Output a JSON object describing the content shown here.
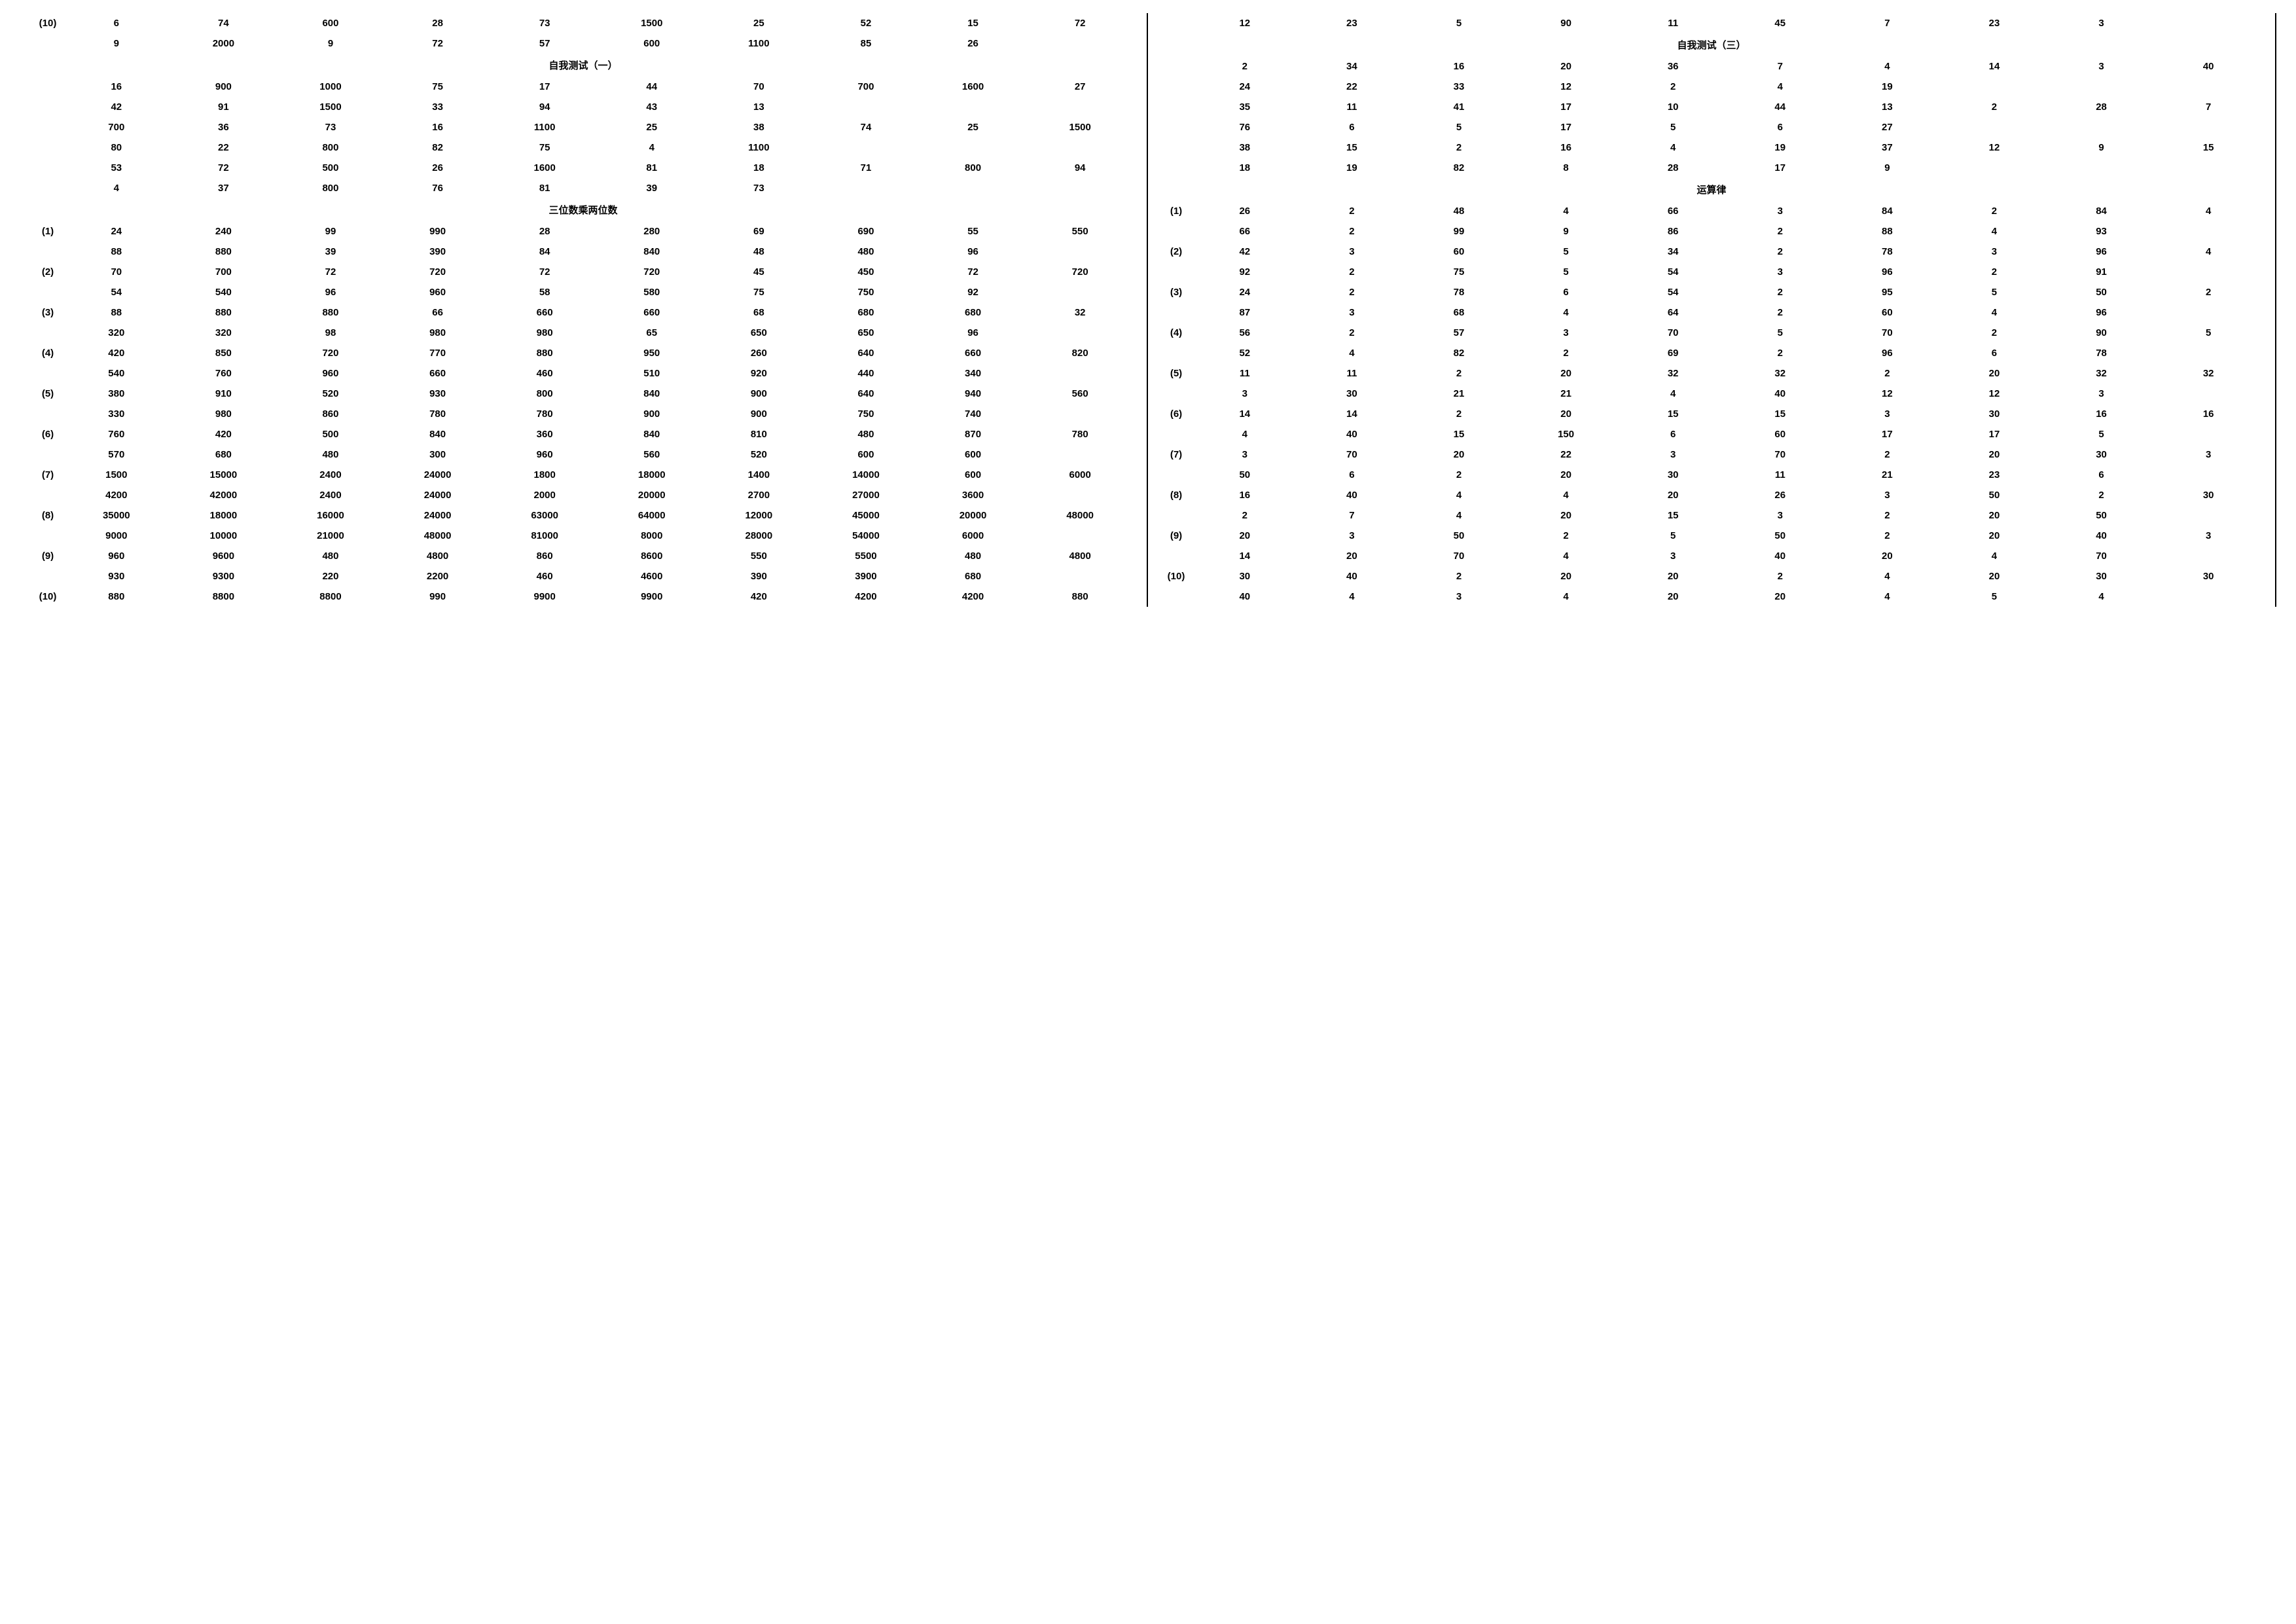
{
  "left": {
    "rows": [
      {
        "label": "(10)",
        "cells": [
          "6",
          "74",
          "600",
          "28",
          "73",
          "1500",
          "25",
          "52",
          "15",
          "72"
        ]
      },
      {
        "label": "",
        "cells": [
          "9",
          "2000",
          "9",
          "72",
          "57",
          "600",
          "1100",
          "85",
          "26",
          ""
        ]
      }
    ],
    "title1": "自我测试（一）",
    "rows1": [
      {
        "label": "",
        "cells": [
          "16",
          "900",
          "1000",
          "75",
          "17",
          "44",
          "70",
          "700",
          "1600",
          "27"
        ]
      },
      {
        "label": "",
        "cells": [
          "42",
          "91",
          "1500",
          "33",
          "94",
          "43",
          "13",
          "",
          "",
          ""
        ]
      },
      {
        "label": "",
        "cells": [
          "700",
          "36",
          "73",
          "16",
          "1100",
          "25",
          "38",
          "74",
          "25",
          "1500"
        ]
      },
      {
        "label": "",
        "cells": [
          "80",
          "22",
          "800",
          "82",
          "75",
          "4",
          "1100",
          "",
          "",
          ""
        ]
      },
      {
        "label": "",
        "cells": [
          "53",
          "72",
          "500",
          "26",
          "1600",
          "81",
          "18",
          "71",
          "800",
          "94"
        ]
      },
      {
        "label": "",
        "cells": [
          "4",
          "37",
          "800",
          "76",
          "81",
          "39",
          "73",
          "",
          "",
          ""
        ]
      }
    ],
    "title2": "三位数乘两位数",
    "rows2": [
      {
        "label": "(1)",
        "cells": [
          "24",
          "240",
          "99",
          "990",
          "28",
          "280",
          "69",
          "690",
          "55",
          "550"
        ]
      },
      {
        "label": "",
        "cells": [
          "88",
          "880",
          "39",
          "390",
          "84",
          "840",
          "48",
          "480",
          "96",
          ""
        ]
      },
      {
        "label": "(2)",
        "cells": [
          "70",
          "700",
          "72",
          "720",
          "72",
          "720",
          "45",
          "450",
          "72",
          "720"
        ]
      },
      {
        "label": "",
        "cells": [
          "54",
          "540",
          "96",
          "960",
          "58",
          "580",
          "75",
          "750",
          "92",
          ""
        ]
      },
      {
        "label": "(3)",
        "cells": [
          "88",
          "880",
          "880",
          "66",
          "660",
          "660",
          "68",
          "680",
          "680",
          "32"
        ]
      },
      {
        "label": "",
        "cells": [
          "320",
          "320",
          "98",
          "980",
          "980",
          "65",
          "650",
          "650",
          "96",
          ""
        ]
      },
      {
        "label": "(4)",
        "cells": [
          "420",
          "850",
          "720",
          "770",
          "880",
          "950",
          "260",
          "640",
          "660",
          "820"
        ]
      },
      {
        "label": "",
        "cells": [
          "540",
          "760",
          "960",
          "660",
          "460",
          "510",
          "920",
          "440",
          "340",
          ""
        ]
      },
      {
        "label": "(5)",
        "cells": [
          "380",
          "910",
          "520",
          "930",
          "800",
          "840",
          "900",
          "640",
          "940",
          "560"
        ]
      },
      {
        "label": "",
        "cells": [
          "330",
          "980",
          "860",
          "780",
          "780",
          "900",
          "900",
          "750",
          "740",
          ""
        ]
      },
      {
        "label": "(6)",
        "cells": [
          "760",
          "420",
          "500",
          "840",
          "360",
          "840",
          "810",
          "480",
          "870",
          "780"
        ]
      },
      {
        "label": "",
        "cells": [
          "570",
          "680",
          "480",
          "300",
          "960",
          "560",
          "520",
          "600",
          "600",
          ""
        ]
      },
      {
        "label": "(7)",
        "cells": [
          "1500",
          "15000",
          "2400",
          "24000",
          "1800",
          "18000",
          "1400",
          "14000",
          "600",
          "6000"
        ]
      },
      {
        "label": "",
        "cells": [
          "4200",
          "42000",
          "2400",
          "24000",
          "2000",
          "20000",
          "2700",
          "27000",
          "3600",
          ""
        ]
      },
      {
        "label": "(8)",
        "cells": [
          "35000",
          "18000",
          "16000",
          "24000",
          "63000",
          "64000",
          "12000",
          "45000",
          "20000",
          "48000"
        ]
      },
      {
        "label": "",
        "cells": [
          "9000",
          "10000",
          "21000",
          "48000",
          "81000",
          "8000",
          "28000",
          "54000",
          "6000",
          ""
        ]
      },
      {
        "label": "(9)",
        "cells": [
          "960",
          "9600",
          "480",
          "4800",
          "860",
          "8600",
          "550",
          "5500",
          "480",
          "4800"
        ]
      },
      {
        "label": "",
        "cells": [
          "930",
          "9300",
          "220",
          "2200",
          "460",
          "4600",
          "390",
          "3900",
          "680",
          ""
        ]
      },
      {
        "label": "(10)",
        "cells": [
          "880",
          "8800",
          "8800",
          "990",
          "9900",
          "9900",
          "420",
          "4200",
          "4200",
          "880"
        ]
      }
    ]
  },
  "right": {
    "rows": [
      {
        "label": "",
        "cells": [
          "12",
          "23",
          "5",
          "90",
          "11",
          "45",
          "7",
          "23",
          "3",
          ""
        ]
      }
    ],
    "title1": "自我测试（三）",
    "rows1": [
      {
        "label": "",
        "cells": [
          "2",
          "34",
          "16",
          "20",
          "36",
          "7",
          "4",
          "14",
          "3",
          "40"
        ]
      },
      {
        "label": "",
        "cells": [
          "24",
          "22",
          "33",
          "12",
          "2",
          "4",
          "19",
          "",
          "",
          ""
        ]
      },
      {
        "label": "",
        "cells": [
          "35",
          "11",
          "41",
          "17",
          "10",
          "44",
          "13",
          "2",
          "28",
          "7"
        ]
      },
      {
        "label": "",
        "cells": [
          "76",
          "6",
          "5",
          "17",
          "5",
          "6",
          "27",
          "",
          "",
          ""
        ]
      },
      {
        "label": "",
        "cells": [
          "38",
          "15",
          "2",
          "16",
          "4",
          "19",
          "37",
          "12",
          "9",
          "15"
        ]
      },
      {
        "label": "",
        "cells": [
          "18",
          "19",
          "82",
          "8",
          "28",
          "17",
          "9",
          "",
          "",
          ""
        ]
      }
    ],
    "title2": "运算律",
    "rows2": [
      {
        "label": "(1)",
        "cells": [
          "26",
          "2",
          "48",
          "4",
          "66",
          "3",
          "84",
          "2",
          "84",
          "4"
        ]
      },
      {
        "label": "",
        "cells": [
          "66",
          "2",
          "99",
          "9",
          "86",
          "2",
          "88",
          "4",
          "93",
          ""
        ]
      },
      {
        "label": "(2)",
        "cells": [
          "42",
          "3",
          "60",
          "5",
          "34",
          "2",
          "78",
          "3",
          "96",
          "4"
        ]
      },
      {
        "label": "",
        "cells": [
          "92",
          "2",
          "75",
          "5",
          "54",
          "3",
          "96",
          "2",
          "91",
          ""
        ]
      },
      {
        "label": "(3)",
        "cells": [
          "24",
          "2",
          "78",
          "6",
          "54",
          "2",
          "95",
          "5",
          "50",
          "2"
        ]
      },
      {
        "label": "",
        "cells": [
          "87",
          "3",
          "68",
          "4",
          "64",
          "2",
          "60",
          "4",
          "96",
          ""
        ]
      },
      {
        "label": "(4)",
        "cells": [
          "56",
          "2",
          "57",
          "3",
          "70",
          "5",
          "70",
          "2",
          "90",
          "5"
        ]
      },
      {
        "label": "",
        "cells": [
          "52",
          "4",
          "82",
          "2",
          "69",
          "2",
          "96",
          "6",
          "78",
          ""
        ]
      },
      {
        "label": "(5)",
        "cells": [
          "11",
          "11",
          "2",
          "20",
          "32",
          "32",
          "2",
          "20",
          "32",
          "32"
        ]
      },
      {
        "label": "",
        "cells": [
          "3",
          "30",
          "21",
          "21",
          "4",
          "40",
          "12",
          "12",
          "3",
          ""
        ]
      },
      {
        "label": "(6)",
        "cells": [
          "14",
          "14",
          "2",
          "20",
          "15",
          "15",
          "3",
          "30",
          "16",
          "16"
        ]
      },
      {
        "label": "",
        "cells": [
          "4",
          "40",
          "15",
          "150",
          "6",
          "60",
          "17",
          "17",
          "5",
          ""
        ]
      },
      {
        "label": "(7)",
        "cells": [
          "3",
          "70",
          "20",
          "22",
          "3",
          "70",
          "2",
          "20",
          "30",
          "3"
        ]
      },
      {
        "label": "",
        "cells": [
          "50",
          "6",
          "2",
          "20",
          "30",
          "11",
          "21",
          "23",
          "6",
          ""
        ]
      },
      {
        "label": "(8)",
        "cells": [
          "16",
          "40",
          "4",
          "4",
          "20",
          "26",
          "3",
          "50",
          "2",
          "30"
        ]
      },
      {
        "label": "",
        "cells": [
          "2",
          "7",
          "4",
          "20",
          "15",
          "3",
          "2",
          "20",
          "50",
          ""
        ]
      },
      {
        "label": "(9)",
        "cells": [
          "20",
          "3",
          "50",
          "2",
          "5",
          "50",
          "2",
          "20",
          "40",
          "3"
        ]
      },
      {
        "label": "",
        "cells": [
          "14",
          "20",
          "70",
          "4",
          "3",
          "40",
          "20",
          "4",
          "70",
          ""
        ]
      },
      {
        "label": "(10)",
        "cells": [
          "30",
          "40",
          "2",
          "20",
          "20",
          "2",
          "4",
          "20",
          "30",
          "30"
        ]
      },
      {
        "label": "",
        "cells": [
          "40",
          "4",
          "3",
          "4",
          "20",
          "20",
          "4",
          "5",
          "4",
          ""
        ]
      }
    ]
  }
}
